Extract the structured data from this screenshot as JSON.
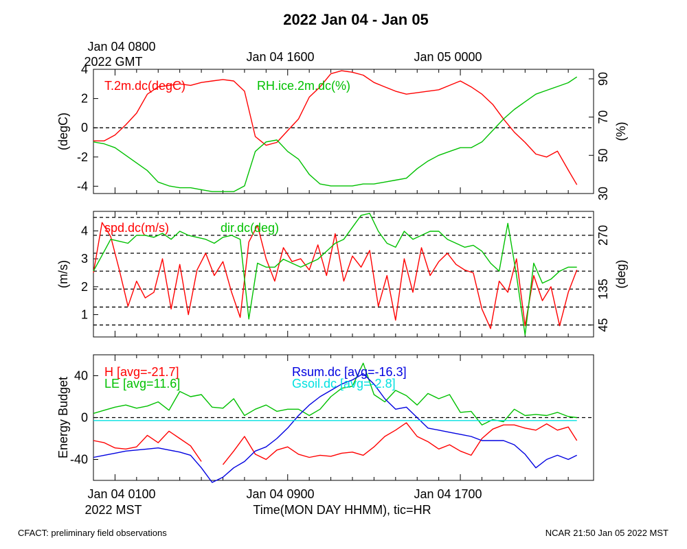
{
  "figure": {
    "title": "2022 Jan 04 - Jan 05",
    "top_axis_labels": [
      "Jan 04 0800",
      "Jan 04 1600",
      "Jan 05 0000"
    ],
    "top_axis_sublabel": "2022 GMT",
    "bottom_axis_labels": [
      "Jan 04 0100",
      "Jan 04 0900",
      "Jan 04 1700"
    ],
    "bottom_axis_sublabel": "2022 MST",
    "xlabel": "Time(MON DAY HHMM), tic=HR",
    "footer_left": "CFACT: preliminary field observations",
    "footer_right": "NCAR 21:50 Jan 05 2022 MST"
  },
  "colors": {
    "red": "#ff0000",
    "green": "#00c000",
    "blue": "#0000e0",
    "cyan": "#00e0e0",
    "black": "#000000"
  },
  "chart_data": [
    {
      "type": "line",
      "panel": "temperature-rh",
      "ylabel": "(degC)",
      "ylabel_right": "(%)",
      "ylim": [
        -4.5,
        4.0
      ],
      "yticks": [
        -4,
        -2,
        0,
        2,
        4
      ],
      "yticklabels": [
        "-4",
        "-2",
        "0",
        "2",
        "4"
      ],
      "ylim_right": [
        30,
        95
      ],
      "yticks_right": [
        30,
        50,
        70,
        90
      ],
      "yticklabels_right": [
        "30",
        "50",
        "70",
        "90"
      ],
      "xlim_hours": [
        0.0,
        22.6
      ],
      "reference_lines": [
        0
      ],
      "series": [
        {
          "name": "T.2m.dc(degC)",
          "axis": "left",
          "color": "red",
          "x": [
            0.0,
            0.5,
            1.0,
            1.5,
            2.0,
            2.5,
            3.0,
            3.5,
            4.0,
            4.5,
            5.0,
            5.5,
            6.0,
            6.5,
            7.0,
            7.5,
            8.0,
            8.5,
            9.0,
            9.5,
            10.0,
            10.5,
            11.0,
            11.5,
            12.0,
            12.5,
            13.0,
            13.5,
            14.0,
            14.5,
            15.0,
            15.5,
            16.0,
            16.5,
            17.0,
            17.5,
            18.0,
            18.5,
            19.0,
            19.5,
            20.0,
            20.5,
            21.0,
            21.5,
            22.0,
            22.4
          ],
          "values": [
            -0.9,
            -0.9,
            -0.5,
            0.2,
            1.0,
            2.3,
            2.8,
            2.9,
            3.0,
            2.9,
            3.1,
            3.2,
            3.3,
            3.2,
            2.5,
            -0.6,
            -1.2,
            -1.0,
            -0.2,
            0.6,
            2.1,
            2.8,
            3.7,
            3.9,
            3.8,
            3.6,
            3.1,
            2.8,
            2.5,
            2.3,
            2.4,
            2.5,
            2.6,
            2.9,
            3.2,
            2.8,
            2.3,
            1.6,
            0.6,
            -0.3,
            -1.0,
            -1.8,
            -2.0,
            -1.6,
            -2.9,
            -3.9
          ]
        },
        {
          "name": "RH.ice.2m.dc(%)",
          "axis": "right",
          "color": "green",
          "x": [
            0.0,
            0.5,
            1.0,
            1.5,
            2.0,
            2.5,
            3.0,
            3.5,
            4.0,
            4.5,
            5.0,
            5.5,
            6.0,
            6.5,
            7.0,
            7.5,
            8.0,
            8.5,
            9.0,
            9.5,
            10.0,
            10.5,
            11.0,
            11.5,
            12.0,
            12.5,
            13.0,
            13.5,
            14.0,
            14.5,
            15.0,
            15.5,
            16.0,
            16.5,
            17.0,
            17.5,
            18.0,
            18.5,
            19.0,
            19.5,
            20.0,
            20.5,
            21.0,
            21.5,
            22.0,
            22.4
          ],
          "values": [
            57,
            56,
            54,
            50,
            46,
            42,
            36,
            34,
            33,
            33,
            32,
            31,
            31,
            31,
            34,
            52,
            57,
            58,
            52,
            48,
            40,
            35,
            34,
            34,
            34,
            35,
            35,
            36,
            37,
            38,
            43,
            47,
            50,
            52,
            54,
            54,
            57,
            63,
            69,
            74,
            78,
            82,
            84,
            86,
            88,
            91
          ]
        }
      ]
    },
    {
      "type": "line",
      "panel": "wind",
      "ylabel": "(m/s)",
      "ylabel_right": "(deg)",
      "ylim": [
        0.2,
        4.7
      ],
      "yticks": [
        1,
        2,
        3,
        4
      ],
      "yticklabels": [
        "1",
        "2",
        "3",
        "4"
      ],
      "ylim_right": [
        15,
        330
      ],
      "yticks_right": [
        45,
        135,
        270
      ],
      "yticklabels_right": [
        "45",
        "135",
        "270"
      ],
      "xlim_hours": [
        0.0,
        22.6
      ],
      "reference_lines_right": [
        45,
        90,
        135,
        180,
        225,
        270,
        315
      ],
      "series": [
        {
          "name": "spd.dc(m/s)",
          "axis": "left",
          "color": "red",
          "x": [
            0.0,
            0.4,
            0.8,
            1.2,
            1.6,
            2.0,
            2.4,
            2.8,
            3.2,
            3.6,
            4.0,
            4.4,
            4.8,
            5.2,
            5.6,
            6.0,
            6.4,
            6.8,
            7.2,
            7.6,
            8.0,
            8.4,
            8.8,
            9.2,
            9.6,
            10.0,
            10.4,
            10.8,
            11.2,
            11.6,
            12.0,
            12.4,
            12.8,
            13.2,
            13.6,
            14.0,
            14.4,
            14.8,
            15.2,
            15.6,
            16.0,
            16.4,
            16.8,
            17.2,
            17.6,
            18.0,
            18.4,
            18.8,
            19.2,
            19.6,
            20.0,
            20.4,
            20.8,
            21.2,
            21.6,
            22.0,
            22.4
          ],
          "values": [
            2.5,
            4.3,
            3.8,
            2.6,
            1.3,
            2.2,
            1.6,
            1.8,
            3.0,
            1.2,
            2.8,
            1.0,
            2.6,
            3.2,
            2.4,
            2.9,
            1.8,
            0.9,
            3.6,
            4.2,
            3.0,
            2.2,
            3.4,
            2.9,
            3.0,
            2.6,
            3.5,
            2.4,
            3.9,
            2.2,
            3.1,
            2.7,
            3.3,
            1.3,
            2.4,
            0.8,
            3.0,
            1.8,
            3.4,
            2.4,
            2.9,
            3.2,
            2.8,
            2.6,
            2.5,
            1.2,
            0.5,
            2.2,
            1.8,
            3.0,
            0.6,
            2.4,
            1.5,
            2.0,
            0.6,
            1.8,
            2.6
          ]
        },
        {
          "name": "dir.dc(deg)",
          "axis": "right",
          "color": "green",
          "x": [
            0.0,
            0.4,
            0.8,
            1.2,
            1.6,
            2.0,
            2.4,
            2.8,
            3.2,
            3.6,
            4.0,
            4.4,
            4.8,
            5.2,
            5.6,
            6.0,
            6.4,
            6.8,
            7.2,
            7.6,
            8.0,
            8.4,
            8.8,
            9.2,
            9.6,
            10.0,
            10.4,
            10.8,
            11.2,
            11.6,
            12.0,
            12.4,
            12.8,
            13.2,
            13.6,
            14.0,
            14.4,
            14.8,
            15.2,
            15.6,
            16.0,
            16.4,
            16.8,
            17.2,
            17.6,
            18.0,
            18.4,
            18.8,
            19.2,
            19.6,
            20.0,
            20.4,
            20.8,
            21.2,
            21.6,
            22.0,
            22.4
          ],
          "values": [
            180,
            220,
            260,
            255,
            250,
            270,
            270,
            265,
            275,
            260,
            280,
            270,
            265,
            260,
            250,
            265,
            270,
            260,
            60,
            200,
            190,
            190,
            210,
            200,
            190,
            200,
            210,
            230,
            250,
            260,
            290,
            320,
            325,
            280,
            250,
            240,
            280,
            260,
            270,
            280,
            280,
            260,
            250,
            240,
            245,
            230,
            200,
            180,
            300,
            170,
            20,
            200,
            150,
            160,
            180,
            190,
            190
          ]
        }
      ]
    },
    {
      "type": "line",
      "panel": "energy-budget",
      "ylabel": "Energy Budget",
      "ylim": [
        -60,
        60
      ],
      "yticks": [
        -40,
        0,
        40
      ],
      "yticklabels": [
        "-40",
        "0",
        "40"
      ],
      "xlim_hours": [
        0.0,
        22.6
      ],
      "reference_lines": [
        0
      ],
      "series": [
        {
          "name": "H",
          "legend": "H [avg=-21.7]",
          "color": "red",
          "x": [
            0.0,
            0.5,
            1.0,
            1.5,
            2.0,
            2.5,
            3.0,
            3.5,
            4.0,
            4.5,
            5.0,
            5.5,
            6.0,
            6.5,
            7.0,
            7.5,
            8.0,
            8.5,
            9.0,
            9.5,
            10.0,
            10.5,
            11.0,
            11.5,
            12.0,
            12.5,
            13.0,
            13.5,
            14.0,
            14.5,
            15.0,
            15.5,
            16.0,
            16.5,
            17.0,
            17.5,
            18.0,
            18.5,
            19.0,
            19.5,
            20.0,
            20.5,
            21.0,
            21.5,
            22.0,
            22.4
          ],
          "values": [
            -22,
            -24,
            -29,
            -30,
            -28,
            -17,
            -24,
            -13,
            -20,
            -27,
            -42,
            null,
            -45,
            -32,
            -18,
            -35,
            -40,
            -31,
            -28,
            -35,
            -38,
            -36,
            -37,
            -34,
            -33,
            -36,
            -28,
            -18,
            -12,
            -5,
            -18,
            -23,
            -30,
            -26,
            -32,
            -36,
            -20,
            -11,
            -7,
            -7,
            -10,
            -12,
            -6,
            -12,
            -9,
            -22
          ]
        },
        {
          "name": "LE",
          "legend": "LE [avg=11.6]",
          "color": "green",
          "x": [
            0.0,
            0.5,
            1.0,
            1.5,
            2.0,
            2.5,
            3.0,
            3.5,
            4.0,
            4.5,
            5.0,
            5.5,
            6.0,
            6.5,
            7.0,
            7.5,
            8.0,
            8.5,
            9.0,
            9.5,
            10.0,
            10.5,
            11.0,
            11.5,
            12.0,
            12.5,
            13.0,
            13.5,
            14.0,
            14.5,
            15.0,
            15.5,
            16.0,
            16.5,
            17.0,
            17.5,
            18.0,
            18.5,
            19.0,
            19.5,
            20.0,
            20.5,
            21.0,
            21.5,
            22.0,
            22.4
          ],
          "values": [
            4,
            7,
            10,
            12,
            9,
            11,
            15,
            7,
            25,
            20,
            22,
            10,
            9,
            18,
            2,
            8,
            12,
            6,
            8,
            8,
            2,
            8,
            20,
            28,
            30,
            52,
            22,
            15,
            26,
            21,
            12,
            23,
            18,
            22,
            5,
            6,
            -7,
            -2,
            -4,
            8,
            2,
            3,
            2,
            5,
            1,
            0
          ]
        },
        {
          "name": "Rsum.dc",
          "legend": "Rsum.dc [avg=-16.3]",
          "color": "blue",
          "x": [
            0.0,
            0.5,
            1.0,
            1.5,
            2.0,
            2.5,
            3.0,
            3.5,
            4.0,
            4.5,
            5.0,
            5.5,
            6.0,
            6.5,
            7.0,
            7.5,
            8.0,
            8.5,
            9.0,
            9.5,
            10.0,
            10.5,
            11.0,
            11.5,
            12.0,
            12.5,
            13.0,
            13.5,
            14.0,
            14.5,
            15.0,
            15.5,
            16.0,
            16.5,
            17.0,
            17.5,
            18.0,
            18.5,
            19.0,
            19.5,
            20.0,
            20.5,
            21.0,
            21.5,
            22.0,
            22.4
          ],
          "values": [
            -38,
            -36,
            -34,
            -32,
            -31,
            -30,
            -29,
            -31,
            -33,
            -36,
            -48,
            -62,
            -57,
            -48,
            -42,
            -32,
            -28,
            -20,
            -10,
            2,
            12,
            20,
            26,
            32,
            36,
            42,
            32,
            18,
            8,
            10,
            0,
            -10,
            -12,
            -14,
            -16,
            -18,
            -22,
            -22,
            -22,
            -26,
            -35,
            -48,
            -40,
            -36,
            -40,
            -36
          ]
        },
        {
          "name": "Gsoil.dc",
          "legend": "Gsoil.dc [avg=-2.8]",
          "color": "cyan",
          "x": [
            0.0,
            22.4
          ],
          "values": [
            -2.8,
            -2.8
          ]
        }
      ]
    }
  ]
}
